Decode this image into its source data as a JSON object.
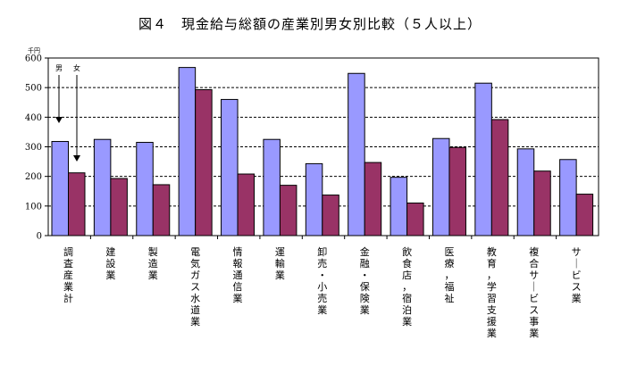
{
  "chart_data": {
    "type": "bar",
    "title": "図４　現金給与総額の産業別男女別比較（５人以上）",
    "ylabel": "千円",
    "xlabel": "",
    "ylim": [
      0,
      600
    ],
    "yticks": [
      "0",
      "100",
      "200",
      "300",
      "400",
      "500",
      "600"
    ],
    "grid": true,
    "legend": {
      "placement": "top-left",
      "arrow_note": true
    },
    "categories": [
      "調査産業計",
      "建設業",
      "製造業",
      "電気ガス水道業",
      "情報通信業",
      "運輸業",
      "卸売・小売業",
      "金融・保険業",
      "飲食店，宿泊業",
      "医療，福祉",
      "教育，学習支援業",
      "複合サービス事業",
      "サービス業"
    ],
    "series": [
      {
        "name": "男",
        "color": "#9999FF",
        "values": [
          318,
          325,
          315,
          568,
          460,
          325,
          243,
          548,
          197,
          328,
          515,
          293,
          257
        ]
      },
      {
        "name": "女",
        "color": "#993366",
        "values": [
          212,
          193,
          172,
          493,
          208,
          170,
          137,
          247,
          110,
          298,
          392,
          218,
          140
        ]
      }
    ]
  }
}
